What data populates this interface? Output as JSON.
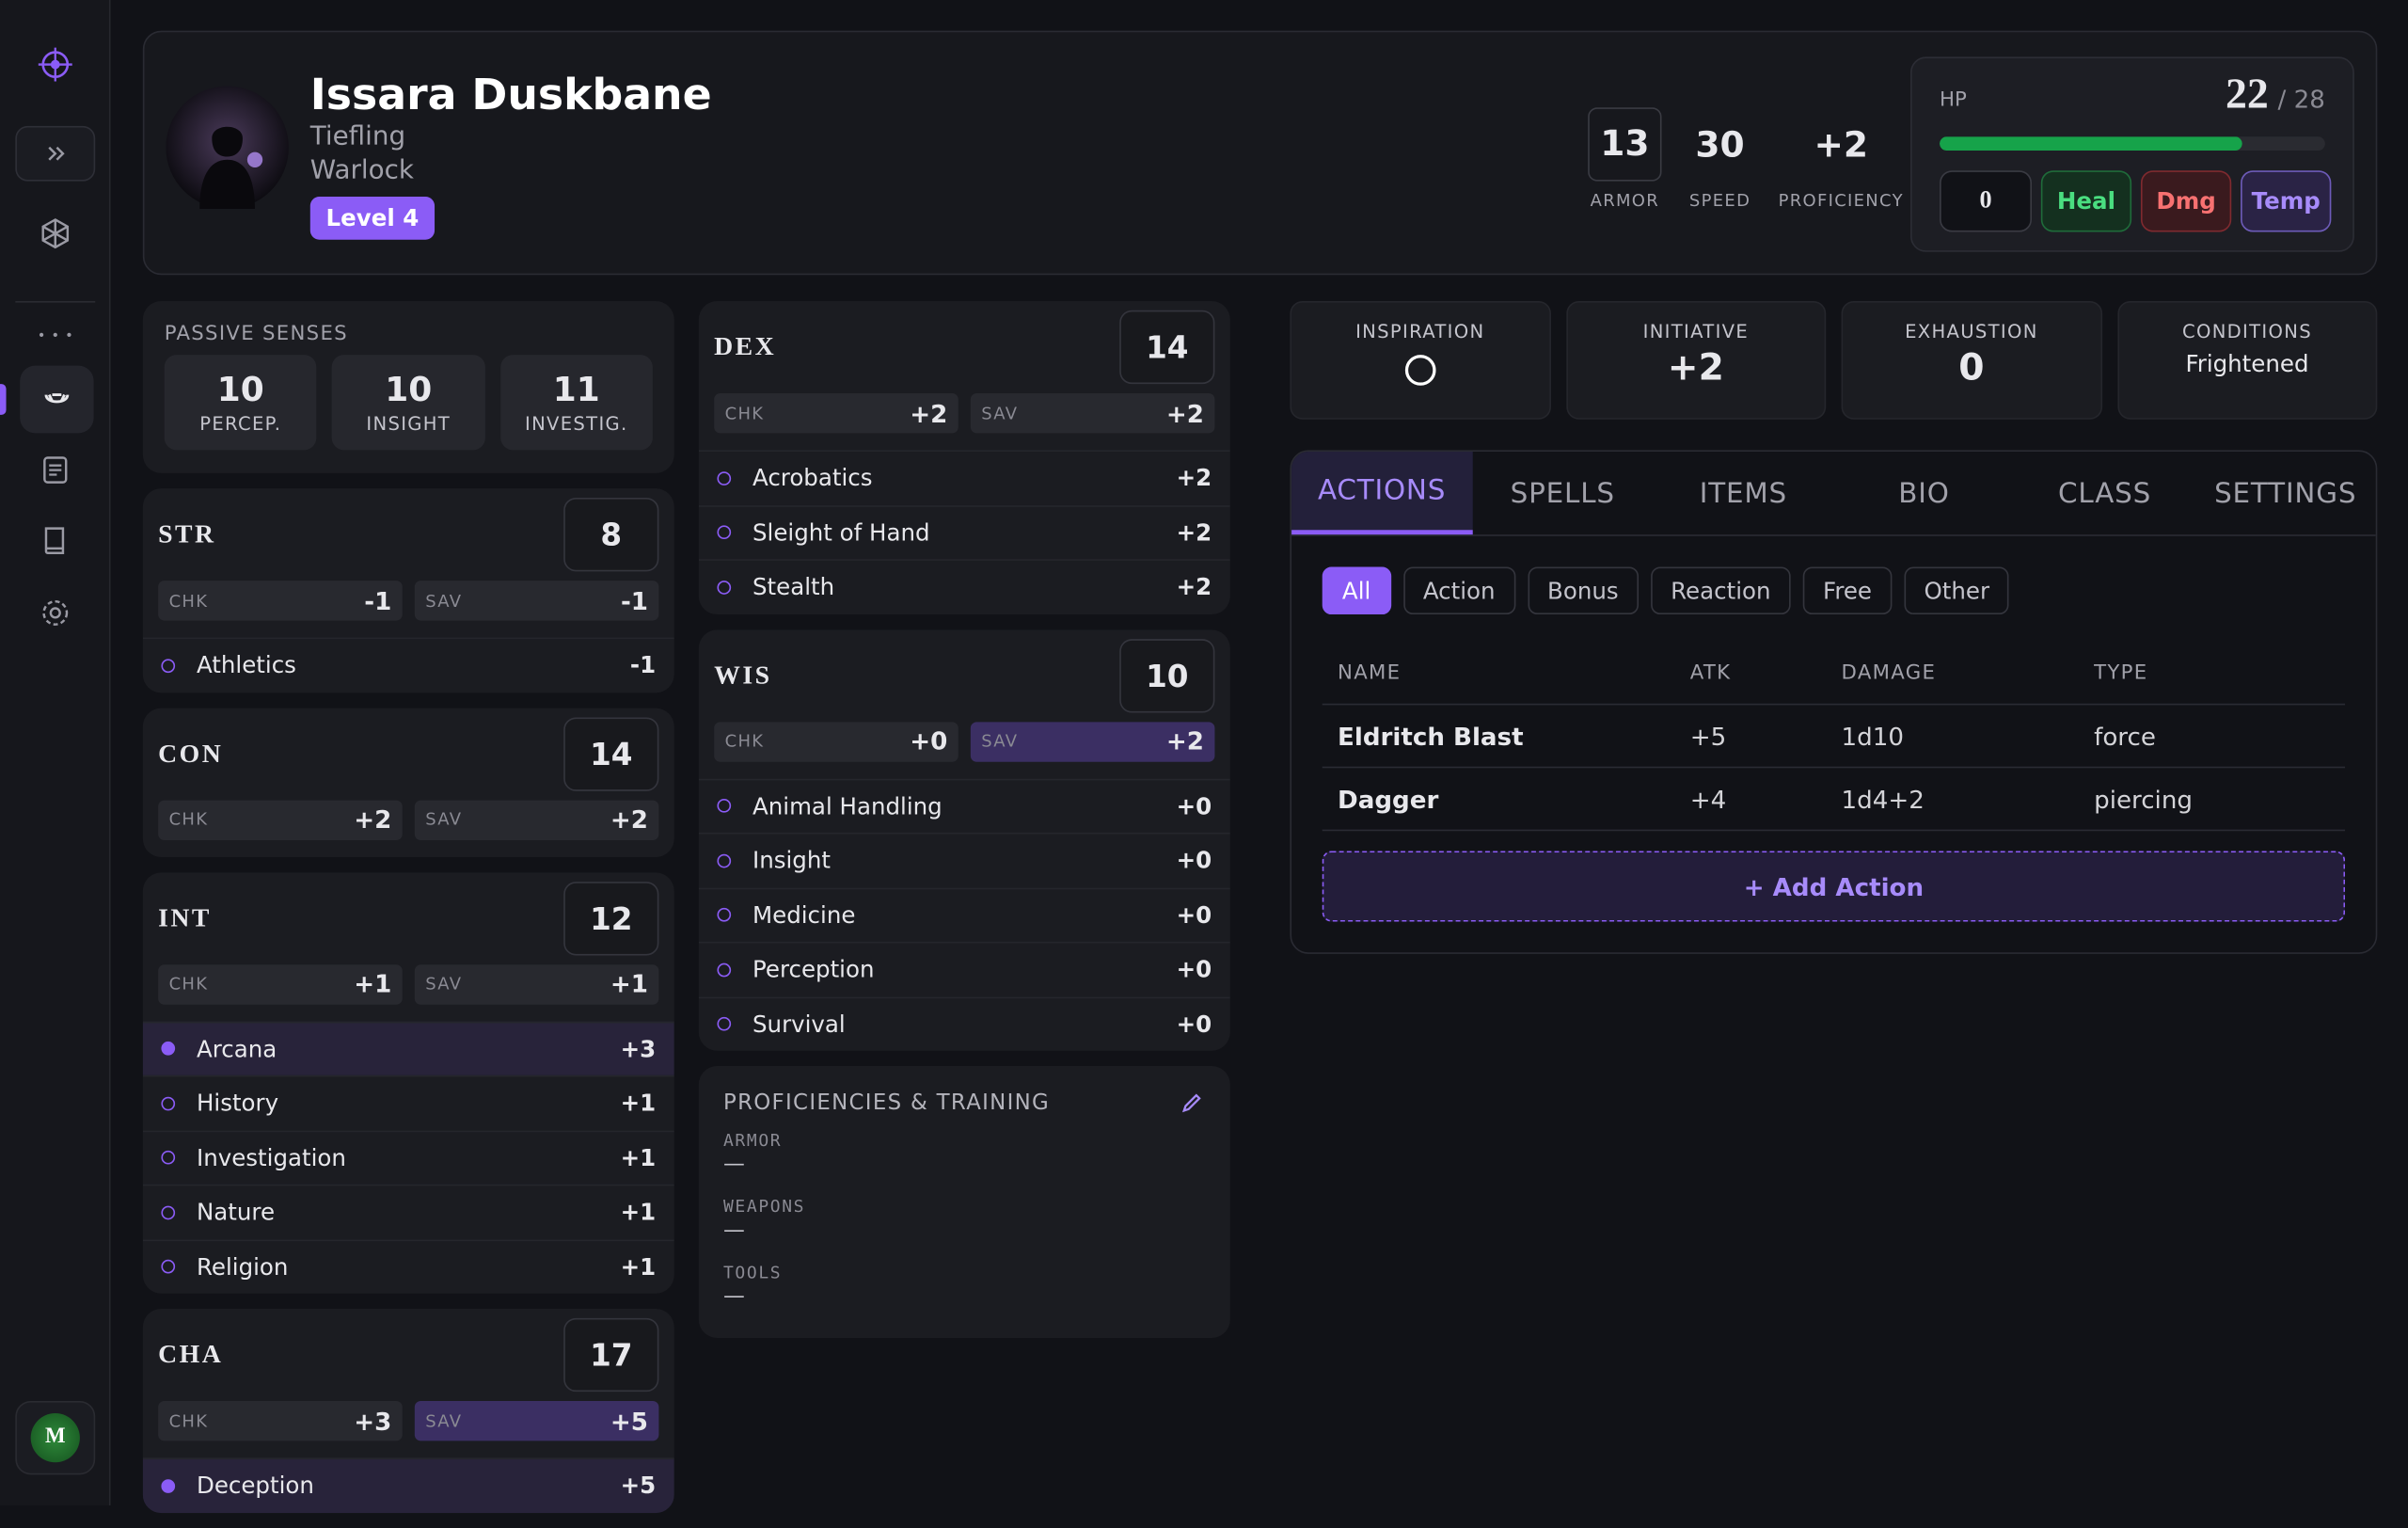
{
  "sidebar": {
    "avatar": "M"
  },
  "header": {
    "name": "Issara Duskbane",
    "race": "Tiefling",
    "class": "Warlock",
    "level": "Level 4",
    "stats": [
      {
        "value": 13,
        "label": "ARMOR",
        "boxed": true
      },
      {
        "value": 30,
        "label": "SPEED",
        "boxed": false
      },
      {
        "value": "+2",
        "label": "PROFICIENCY",
        "boxed": false
      }
    ],
    "hp": {
      "label": "HP",
      "current": 22,
      "max": {
        "value": 28,
        "label": "/ 28"
      },
      "input": 0,
      "buttons": [
        "Heal",
        "Dmg",
        "Temp"
      ]
    }
  },
  "passive_senses": {
    "title": "PASSIVE SENSES",
    "items": [
      {
        "value": 10,
        "label": "PERCEP."
      },
      {
        "value": 10,
        "label": "INSIGHT"
      },
      {
        "value": 11,
        "label": "INVESTIG."
      }
    ]
  },
  "ability_labels": {
    "chk": "CHK",
    "sav": "SAV"
  },
  "left_column": [
    {
      "name": "STR",
      "score": 8,
      "chk": "-1",
      "sav": "-1",
      "sav_proficient": false,
      "skills": [
        {
          "name": "Athletics",
          "value": "-1",
          "proficient": false
        }
      ]
    },
    {
      "name": "CON",
      "score": 14,
      "chk": "+2",
      "sav": "+2",
      "sav_proficient": false,
      "skills": []
    },
    {
      "name": "INT",
      "score": 12,
      "chk": "+1",
      "sav": "+1",
      "sav_proficient": false,
      "skills": [
        {
          "name": "Arcana",
          "value": "+3",
          "proficient": true
        },
        {
          "name": "History",
          "value": "+1",
          "proficient": false
        },
        {
          "name": "Investigation",
          "value": "+1",
          "proficient": false
        },
        {
          "name": "Nature",
          "value": "+1",
          "proficient": false
        },
        {
          "name": "Religion",
          "value": "+1",
          "proficient": false
        }
      ]
    },
    {
      "name": "CHA",
      "score": 17,
      "chk": "+3",
      "sav": "+5",
      "sav_proficient": true,
      "skills": [
        {
          "name": "Deception",
          "value": "+5",
          "proficient": true
        }
      ]
    }
  ],
  "middle_column": [
    {
      "name": "DEX",
      "score": 14,
      "chk": "+2",
      "sav": "+2",
      "sav_proficient": false,
      "skills": [
        {
          "name": "Acrobatics",
          "value": "+2",
          "proficient": false
        },
        {
          "name": "Sleight of Hand",
          "value": "+2",
          "proficient": false
        },
        {
          "name": "Stealth",
          "value": "+2",
          "proficient": false
        }
      ]
    },
    {
      "name": "WIS",
      "score": 10,
      "chk": "+0",
      "sav": "+2",
      "sav_proficient": true,
      "skills": [
        {
          "name": "Animal Handling",
          "value": "+0",
          "proficient": false
        },
        {
          "name": "Insight",
          "value": "+0",
          "proficient": false
        },
        {
          "name": "Medicine",
          "value": "+0",
          "proficient": false
        },
        {
          "name": "Perception",
          "value": "+0",
          "proficient": false
        },
        {
          "name": "Survival",
          "value": "+0",
          "proficient": false
        }
      ]
    }
  ],
  "proficiencies": {
    "title": "PROFICIENCIES & TRAINING",
    "items": [
      {
        "label": "ARMOR",
        "value": "—"
      },
      {
        "label": "WEAPONS",
        "value": "—"
      },
      {
        "label": "TOOLS",
        "value": "—"
      }
    ]
  },
  "trackers": [
    {
      "label": "INSPIRATION",
      "inspired": false
    },
    {
      "label": "INITIATIVE",
      "value": "+2"
    },
    {
      "label": "EXHAUSTION",
      "value": 0
    },
    {
      "label": "CONDITIONS",
      "text": "Frightened"
    }
  ],
  "tabs": {
    "items": [
      "ACTIONS",
      "SPELLS",
      "ITEMS",
      "BIO",
      "CLASS",
      "SETTINGS"
    ],
    "active": 0
  },
  "filters": {
    "items": [
      "All",
      "Action",
      "Bonus",
      "Reaction",
      "Free",
      "Other"
    ],
    "active": 0
  },
  "actions_table": {
    "columns": [
      "NAME",
      "ATK",
      "DAMAGE",
      "TYPE"
    ],
    "rows": [
      [
        "Eldritch Blast",
        "+5",
        "1d10",
        "force"
      ],
      [
        "Dagger",
        "+4",
        "1d4+2",
        "piercing"
      ]
    ]
  },
  "add_button": "+ Add Action"
}
